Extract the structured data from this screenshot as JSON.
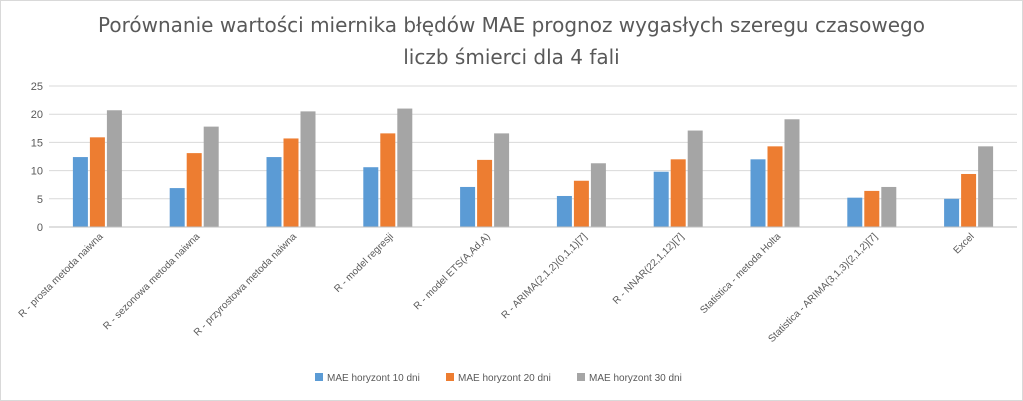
{
  "chart_data": {
    "type": "bar",
    "title_lines": [
      "Porównanie wartości miernika błędów MAE prognoz wygasłych szeregu  czasowego",
      "liczb śmierci dla 4 fali"
    ],
    "categories": [
      "R - prosta metoda naiwna",
      "R - sezonowa metoda naiwna",
      "R - przyrostowa metoda naiwna",
      "R - model regresji",
      "R - model ETS(A,Ad,A)",
      "R - ARIMA(2,1,2)(0,1,1)[7]",
      "R - NNAR(22,1,12)[7]",
      "Statistica - metoda Holta",
      "Statistica - ARIMA(3,1,3)(2,1,2)[7]",
      "Excel"
    ],
    "series": [
      {
        "name": "MAE horyzont 10 dni",
        "color": "#5B9BD5",
        "values": [
          12.4,
          6.9,
          12.4,
          10.6,
          7.1,
          5.5,
          9.8,
          12.0,
          5.2,
          5.0
        ]
      },
      {
        "name": "MAE horyzont 20 dni",
        "color": "#ED7D31",
        "values": [
          15.9,
          13.1,
          15.7,
          16.6,
          11.9,
          8.2,
          12.0,
          14.3,
          6.4,
          9.4
        ]
      },
      {
        "name": "MAE horyzont 30 dni",
        "color": "#A5A5A5",
        "values": [
          20.7,
          17.8,
          20.5,
          21.0,
          16.6,
          11.3,
          17.1,
          19.1,
          7.1,
          14.3
        ]
      }
    ],
    "yticks": [
      0,
      5,
      10,
      15,
      20,
      25
    ],
    "ylim": [
      0,
      25
    ],
    "grid": true,
    "legend_position": "bottom"
  }
}
